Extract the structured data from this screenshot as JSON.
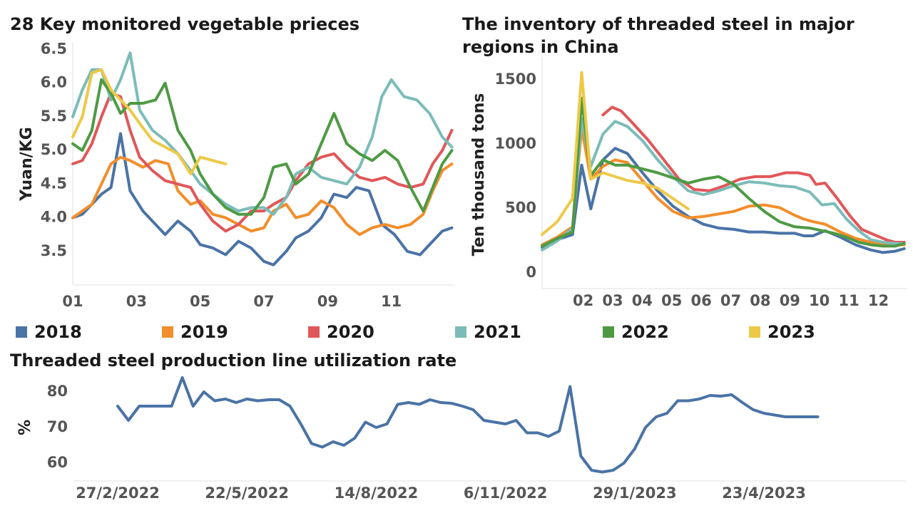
{
  "titles": {
    "veg": "28 Key monitored vegetable prieces",
    "inv": "The inventory of threaded steel in major regions in China",
    "util": "Threaded steel production line utilization rate"
  },
  "colors": {
    "2018": "#4a73a6",
    "2019": "#f28e2b",
    "2020": "#e15759",
    "2021": "#7cbcb8",
    "2022": "#4e9a43",
    "2023": "#edc948"
  },
  "legend": [
    "2018",
    "2019",
    "2020",
    "2021",
    "2022",
    "2023"
  ],
  "chart_data": [
    {
      "type": "line",
      "title": "28 Key monitored vegetable prieces",
      "ylabel": "Yuan/KG",
      "ylim": [
        3.0,
        6.6
      ],
      "yticks": [
        "6.5",
        "6.0",
        "5.5",
        "5.0",
        "4.5",
        "4.0",
        "3.5"
      ],
      "xlim": [
        1,
        13
      ],
      "xticks": [
        "01",
        "03",
        "05",
        "07",
        "09",
        "11"
      ],
      "series": [
        {
          "name": "2018",
          "x": [
            1,
            1.3,
            1.6,
            1.9,
            2.2,
            2.5,
            2.8,
            3.2,
            3.6,
            3.9,
            4.3,
            4.7,
            5.0,
            5.4,
            5.8,
            6.2,
            6.6,
            7.0,
            7.3,
            7.7,
            8.0,
            8.4,
            8.8,
            9.2,
            9.6,
            9.9,
            10.3,
            10.7,
            11.1,
            11.5,
            11.9,
            12.2,
            12.6,
            12.9
          ],
          "y": [
            4.0,
            4.05,
            4.2,
            4.35,
            4.45,
            5.25,
            4.4,
            4.1,
            3.9,
            3.75,
            3.95,
            3.8,
            3.6,
            3.55,
            3.45,
            3.65,
            3.55,
            3.35,
            3.3,
            3.5,
            3.7,
            3.8,
            4.0,
            4.35,
            4.3,
            4.45,
            4.4,
            3.9,
            3.75,
            3.5,
            3.45,
            3.6,
            3.8,
            3.85
          ]
        },
        {
          "name": "2019",
          "x": [
            1,
            1.3,
            1.6,
            1.9,
            2.2,
            2.5,
            2.8,
            3.2,
            3.6,
            4.0,
            4.3,
            4.7,
            5.0,
            5.4,
            5.8,
            6.2,
            6.6,
            7.0,
            7.3,
            7.7,
            8.0,
            8.4,
            8.8,
            9.2,
            9.6,
            10.0,
            10.4,
            10.8,
            11.2,
            11.6,
            12.0,
            12.3,
            12.6,
            12.9
          ],
          "y": [
            4.0,
            4.1,
            4.2,
            4.5,
            4.8,
            4.9,
            4.85,
            4.75,
            4.85,
            4.8,
            4.4,
            4.2,
            4.25,
            4.05,
            4.0,
            3.9,
            3.8,
            3.85,
            4.1,
            4.2,
            4.0,
            4.05,
            4.25,
            4.15,
            3.9,
            3.75,
            3.85,
            3.9,
            3.85,
            3.9,
            4.05,
            4.4,
            4.7,
            4.8
          ]
        },
        {
          "name": "2020",
          "x": [
            1,
            1.3,
            1.6,
            1.9,
            2.2,
            2.5,
            2.8,
            3.1,
            3.5,
            3.9,
            4.3,
            4.7,
            5.0,
            5.4,
            5.8,
            6.2,
            6.6,
            7.0,
            7.3,
            7.7,
            8.0,
            8.4,
            8.8,
            9.2,
            9.6,
            10.0,
            10.4,
            10.8,
            11.2,
            11.6,
            12.0,
            12.3,
            12.6,
            12.9
          ],
          "y": [
            4.8,
            4.85,
            5.1,
            5.5,
            5.85,
            5.8,
            5.3,
            4.9,
            4.7,
            4.55,
            4.5,
            4.45,
            4.2,
            3.95,
            3.8,
            3.9,
            4.1,
            4.1,
            4.2,
            4.3,
            4.55,
            4.8,
            4.9,
            4.95,
            4.75,
            4.6,
            4.55,
            4.6,
            4.5,
            4.45,
            4.5,
            4.8,
            5.0,
            5.3
          ]
        },
        {
          "name": "2021",
          "x": [
            1,
            1.3,
            1.6,
            1.9,
            2.2,
            2.5,
            2.8,
            3.1,
            3.5,
            3.9,
            4.3,
            4.7,
            5.0,
            5.4,
            5.8,
            6.2,
            6.6,
            7.0,
            7.3,
            7.7,
            8.0,
            8.4,
            8.8,
            9.2,
            9.6,
            10.0,
            10.4,
            10.7,
            11.0,
            11.4,
            11.8,
            12.2,
            12.6,
            12.9
          ],
          "y": [
            5.5,
            5.9,
            6.2,
            6.2,
            5.75,
            6.05,
            6.45,
            5.6,
            5.3,
            5.15,
            4.95,
            4.7,
            4.5,
            4.35,
            4.2,
            4.1,
            4.15,
            4.15,
            4.05,
            4.3,
            4.65,
            4.75,
            4.6,
            4.55,
            4.5,
            4.75,
            5.2,
            5.8,
            6.05,
            5.8,
            5.75,
            5.55,
            5.2,
            5.05
          ]
        },
        {
          "name": "2022",
          "x": [
            1,
            1.3,
            1.6,
            1.9,
            2.2,
            2.5,
            2.8,
            3.2,
            3.6,
            3.9,
            4.3,
            4.7,
            5.0,
            5.4,
            5.8,
            6.2,
            6.6,
            7.0,
            7.3,
            7.7,
            8.0,
            8.4,
            8.8,
            9.2,
            9.6,
            10.0,
            10.4,
            10.8,
            11.2,
            11.6,
            12.0,
            12.3,
            12.6,
            12.9
          ],
          "y": [
            5.1,
            5.0,
            5.3,
            6.05,
            5.85,
            5.55,
            5.7,
            5.7,
            5.75,
            6.0,
            5.3,
            5.0,
            4.65,
            4.35,
            4.15,
            4.05,
            4.05,
            4.3,
            4.75,
            4.8,
            4.5,
            4.65,
            5.1,
            5.55,
            5.1,
            4.95,
            4.85,
            5.0,
            4.85,
            4.45,
            4.1,
            4.45,
            4.8,
            5.0
          ]
        },
        {
          "name": "2023",
          "x": [
            1,
            1.3,
            1.6,
            1.9,
            2.2,
            2.5,
            2.8,
            3.1,
            3.5,
            3.9,
            4.3,
            4.7,
            5.0,
            5.4,
            5.8
          ],
          "y": [
            5.2,
            5.5,
            6.15,
            6.2,
            5.9,
            5.75,
            5.6,
            5.4,
            5.15,
            5.05,
            4.95,
            4.65,
            4.9,
            4.85,
            4.8
          ]
        }
      ]
    },
    {
      "type": "line",
      "title": "The inventory of threaded steel in major regions in China",
      "ylabel": "Ten thousand tons",
      "ylim": [
        0,
        1800
      ],
      "yticks": [
        "1500",
        "1000",
        "500",
        "0"
      ],
      "xlim": [
        1,
        13
      ],
      "xticks": [
        "02",
        "03",
        "04",
        "05",
        "06",
        "07",
        "08",
        "09",
        "10",
        "11",
        "12"
      ],
      "series": [
        {
          "name": "2018",
          "x": [
            1,
            1.5,
            2.0,
            2.3,
            2.6,
            3.0,
            3.4,
            3.8,
            4.3,
            4.8,
            5.3,
            5.8,
            6.3,
            6.8,
            7.3,
            7.8,
            8.3,
            8.8,
            9.3,
            9.6,
            9.9,
            10.3,
            10.8,
            11.3,
            11.8,
            12.2,
            12.6,
            12.9
          ],
          "y": [
            320,
            380,
            420,
            960,
            620,
            1000,
            1090,
            1050,
            900,
            760,
            640,
            560,
            500,
            470,
            460,
            440,
            440,
            430,
            430,
            410,
            410,
            450,
            400,
            340,
            300,
            280,
            290,
            310
          ]
        },
        {
          "name": "2019",
          "x": [
            1,
            1.5,
            2.0,
            2.3,
            2.6,
            3.0,
            3.4,
            3.8,
            4.3,
            4.8,
            5.3,
            5.8,
            6.3,
            6.8,
            7.3,
            7.8,
            8.3,
            8.8,
            9.3,
            9.6,
            9.9,
            10.3,
            10.8,
            11.3,
            11.8,
            12.2,
            12.6,
            12.9
          ],
          "y": [
            340,
            400,
            480,
            1250,
            850,
            950,
            1000,
            980,
            840,
            700,
            600,
            550,
            560,
            580,
            600,
            640,
            650,
            630,
            570,
            540,
            520,
            500,
            440,
            390,
            360,
            350,
            340,
            340
          ]
        },
        {
          "name": "2020",
          "x": [
            3.0,
            3.3,
            3.6,
            4.0,
            4.5,
            5.0,
            5.5,
            6.0,
            6.5,
            7.0,
            7.5,
            8.0,
            8.5,
            9.0,
            9.4,
            9.8,
            10.0,
            10.3,
            10.7,
            11.1,
            11.5,
            11.9,
            12.3,
            12.6,
            12.9
          ],
          "y": [
            1350,
            1410,
            1380,
            1280,
            1150,
            1000,
            850,
            770,
            760,
            800,
            850,
            870,
            870,
            900,
            900,
            880,
            810,
            820,
            700,
            570,
            460,
            420,
            380,
            360,
            360
          ]
        },
        {
          "name": "2021",
          "x": [
            1,
            1.5,
            2.0,
            2.3,
            2.6,
            3.0,
            3.4,
            3.8,
            4.3,
            4.8,
            5.3,
            5.8,
            6.3,
            6.8,
            7.3,
            7.8,
            8.3,
            8.8,
            9.3,
            9.8,
            10.2,
            10.6,
            11.0,
            11.4,
            11.8,
            12.2,
            12.6,
            12.9
          ],
          "y": [
            300,
            370,
            470,
            1320,
            950,
            1200,
            1300,
            1260,
            1150,
            1000,
            870,
            760,
            730,
            760,
            800,
            830,
            820,
            800,
            790,
            750,
            650,
            660,
            540,
            450,
            380,
            360,
            350,
            350
          ]
        },
        {
          "name": "2022",
          "x": [
            1,
            1.5,
            2.0,
            2.3,
            2.6,
            3.0,
            3.4,
            3.8,
            4.3,
            4.8,
            5.3,
            5.8,
            6.3,
            6.8,
            7.3,
            7.8,
            8.3,
            8.8,
            9.3,
            9.8,
            10.2,
            10.6,
            11.0,
            11.4,
            11.8,
            12.2,
            12.6,
            12.9
          ],
          "y": [
            330,
            390,
            440,
            1480,
            880,
            1000,
            960,
            960,
            930,
            900,
            860,
            820,
            850,
            870,
            810,
            700,
            600,
            520,
            480,
            470,
            450,
            430,
            400,
            360,
            340,
            330,
            330,
            350
          ]
        },
        {
          "name": "2023",
          "x": [
            1,
            1.5,
            2.0,
            2.3,
            2.6,
            3.0,
            3.4,
            3.8,
            4.3,
            4.8,
            5.3,
            5.8
          ],
          "y": [
            420,
            520,
            700,
            1680,
            850,
            900,
            870,
            840,
            820,
            780,
            700,
            620
          ]
        }
      ]
    },
    {
      "type": "line",
      "title": "Threaded steel production line utilization rate",
      "ylabel": "%",
      "ylim": [
        55,
        85
      ],
      "yticks": [
        "80",
        "70",
        "60"
      ],
      "xticks": [
        "27/2/2022",
        "22/5/2022",
        "14/8/2022",
        "6/11/2022",
        "29/1/2023",
        "23/4/2023"
      ],
      "xtick_positions": [
        0,
        12,
        24,
        36,
        48,
        60
      ],
      "series": [
        {
          "name": "utilization",
          "x": [
            0,
            1,
            2,
            3,
            4,
            5,
            6,
            7,
            8,
            9,
            10,
            11,
            12,
            13,
            14,
            15,
            16,
            17,
            18,
            19,
            20,
            21,
            22,
            23,
            24,
            25,
            26,
            27,
            28,
            29,
            30,
            31,
            32,
            33,
            34,
            35,
            36,
            37,
            38,
            39,
            40,
            41,
            42,
            43,
            44,
            45,
            46,
            47,
            48,
            49,
            50,
            51,
            52,
            53,
            54,
            55,
            56,
            57,
            58,
            59,
            60,
            61,
            62,
            63,
            64,
            65
          ],
          "y": [
            76,
            72,
            76,
            76,
            76,
            76,
            84,
            76,
            80,
            77.5,
            78,
            77,
            78,
            77.5,
            77.8,
            77.8,
            76,
            71,
            65.5,
            64.5,
            66,
            65,
            67,
            71.5,
            70,
            71,
            76.5,
            77,
            76.5,
            77.8,
            77,
            76.8,
            76,
            75,
            72,
            71.5,
            71,
            72,
            68.5,
            68.5,
            67.5,
            69,
            81.5,
            62,
            58,
            57.5,
            58,
            60,
            64,
            70,
            73,
            74,
            77.5,
            77.5,
            78,
            79,
            78.8,
            79.2,
            77,
            75,
            74,
            73.5,
            73,
            73,
            73,
            73
          ]
        }
      ]
    }
  ]
}
